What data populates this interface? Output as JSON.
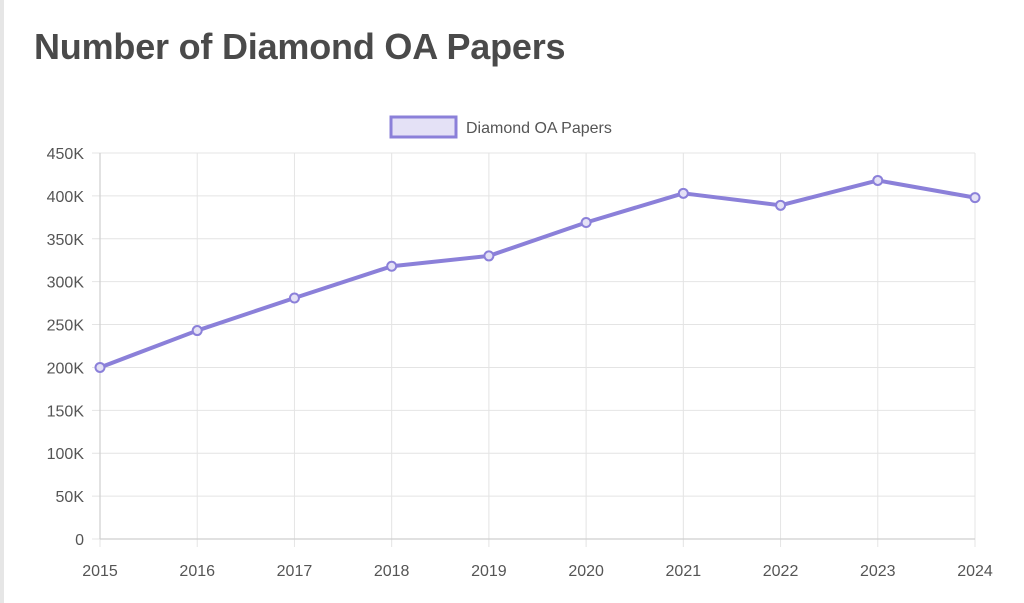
{
  "page": {
    "title": "Number of Diamond OA Papers"
  },
  "colors": {
    "line": "#8b80d9",
    "legend_fill": "#e4e1f6",
    "grid": "#e4e4e4",
    "axis": "#cfcfcf",
    "text": "#555555"
  },
  "chart_data": {
    "type": "line",
    "title": "Number of Diamond OA Papers",
    "xlabel": "",
    "ylabel": "",
    "categories": [
      "2015",
      "2016",
      "2017",
      "2018",
      "2019",
      "2020",
      "2021",
      "2022",
      "2023",
      "2024"
    ],
    "series": [
      {
        "name": "Diamond OA Papers",
        "values": [
          200000,
          243000,
          281000,
          318000,
          330000,
          369000,
          403000,
          389000,
          418000,
          398000
        ]
      }
    ],
    "ylim": [
      0,
      450000
    ],
    "y_ticks": [
      {
        "value": 0,
        "label": "0"
      },
      {
        "value": 50000,
        "label": "50K"
      },
      {
        "value": 100000,
        "label": "100K"
      },
      {
        "value": 150000,
        "label": "150K"
      },
      {
        "value": 200000,
        "label": "200K"
      },
      {
        "value": 250000,
        "label": "250K"
      },
      {
        "value": 300000,
        "label": "300K"
      },
      {
        "value": 350000,
        "label": "350K"
      },
      {
        "value": 400000,
        "label": "400K"
      },
      {
        "value": 450000,
        "label": "450K"
      }
    ],
    "grid": true,
    "legend_position": "top-center"
  }
}
